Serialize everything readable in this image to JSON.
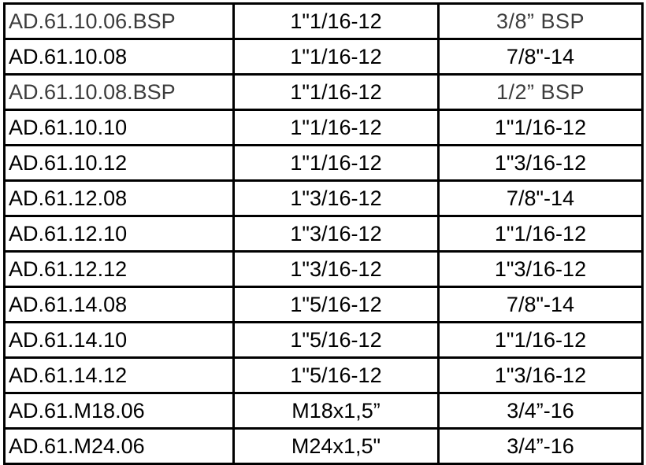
{
  "table": {
    "rows": [
      {
        "code": "AD.61.10.06.BSP",
        "thread": "1\"1/16-12",
        "port": "3/8” BSP",
        "grey": true
      },
      {
        "code": "AD.61.10.08",
        "thread": "1\"1/16-12",
        "port": "7/8\"-14",
        "grey": false
      },
      {
        "code": "AD.61.10.08.BSP",
        "thread": "1\"1/16-12",
        "port": "1/2” BSP",
        "grey": true
      },
      {
        "code": "AD.61.10.10",
        "thread": "1\"1/16-12",
        "port": "1\"1/16-12",
        "grey": false
      },
      {
        "code": "AD.61.10.12",
        "thread": "1\"1/16-12",
        "port": "1\"3/16-12",
        "grey": false
      },
      {
        "code": "AD.61.12.08",
        "thread": "1\"3/16-12",
        "port": "7/8\"-14",
        "grey": false
      },
      {
        "code": "AD.61.12.10",
        "thread": "1\"3/16-12",
        "port": "1\"1/16-12",
        "grey": false
      },
      {
        "code": "AD.61.12.12",
        "thread": "1\"3/16-12",
        "port": "1\"3/16-12",
        "grey": false
      },
      {
        "code": "AD.61.14.08",
        "thread": "1\"5/16-12",
        "port": "7/8\"-14",
        "grey": false
      },
      {
        "code": "AD.61.14.10",
        "thread": "1\"5/16-12",
        "port": "1\"1/16-12",
        "grey": false
      },
      {
        "code": "AD.61.14.12",
        "thread": "1\"5/16-12",
        "port": "1\"3/16-12",
        "grey": false
      },
      {
        "code": "AD.61.M18.06",
        "thread": "M18x1,5”",
        "port": "3/4”-16",
        "grey": false
      },
      {
        "code": "AD.61.M24.06",
        "thread": "M24x1,5\"",
        "port": "3/4”-16",
        "grey": false
      }
    ]
  }
}
